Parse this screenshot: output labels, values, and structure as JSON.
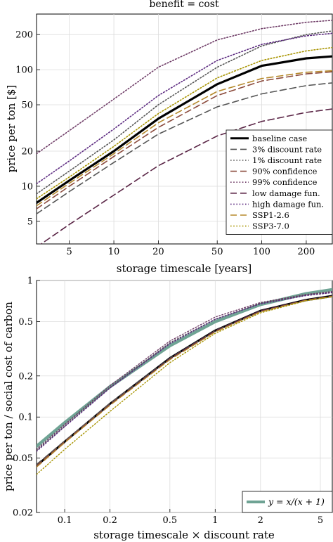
{
  "colors": {
    "black": "#000000",
    "grey": "#555555",
    "brown": "#8b4a3c",
    "plum": "#6e3b66",
    "darkplum": "#5a2546",
    "purple": "#5c2a80",
    "gold": "#b5882a",
    "olive": "#a89400",
    "teal": "#6fa394"
  },
  "chart_data": [
    {
      "type": "line",
      "title": "benefit = cost",
      "xlabel": "storage timescale [years]",
      "ylabel": "price per ton [$]",
      "xscale": "log",
      "yscale": "log",
      "xlim": [
        3,
        300
      ],
      "ylim": [
        3.2,
        300
      ],
      "xticks": [
        5,
        10,
        20,
        50,
        100,
        200
      ],
      "yticks": [
        5,
        10,
        20,
        50,
        100,
        200
      ],
      "grid": true,
      "legend_position": "lower-right",
      "x": [
        3,
        5,
        10,
        20,
        50,
        100,
        200,
        300
      ],
      "series": [
        {
          "name": "baseline case",
          "style": "solid",
          "color": "black",
          "width": 3.2,
          "values": [
            7.2,
            11.2,
            20,
            38,
            75,
            108,
            125,
            130
          ]
        },
        {
          "name": "3% discount rate",
          "style": "dashed",
          "color": "grey",
          "width": 1.6,
          "values": [
            5.8,
            9,
            16,
            28,
            48,
            62,
            73,
            77
          ]
        },
        {
          "name": "1% discount rate",
          "style": "dotted",
          "color": "grey",
          "width": 1.6,
          "values": [
            8.6,
            13.5,
            25,
            50,
            105,
            160,
            200,
            215
          ]
        },
        {
          "name": "90% confidence",
          "style": "dashed",
          "color": "brown",
          "width": 1.6,
          "values": [
            6.4,
            10,
            18,
            32,
            60,
            80,
            92,
            96
          ]
        },
        {
          "name": "99% confidence",
          "style": "dotted",
          "color": "plum",
          "width": 1.6,
          "values": [
            19,
            30,
            56,
            105,
            180,
            225,
            255,
            265
          ]
        },
        {
          "name": "low damage fun.",
          "style": "dashed",
          "color": "darkplum",
          "width": 1.6,
          "values": [
            3.0,
            4.7,
            8.4,
            15,
            27,
            36,
            43,
            46
          ]
        },
        {
          "name": "high damage fun.",
          "style": "dotted",
          "color": "purple",
          "width": 1.6,
          "values": [
            10.5,
            16.5,
            31,
            60,
            120,
            165,
            195,
            205
          ]
        },
        {
          "name": "SSP1-2.6",
          "style": "dashed",
          "color": "gold",
          "width": 1.6,
          "values": [
            6.8,
            10.6,
            19,
            35,
            65,
            84,
            95,
            98
          ]
        },
        {
          "name": "SSP3-7.0",
          "style": "dotted",
          "color": "olive",
          "width": 1.6,
          "values": [
            7.8,
            12,
            22,
            42,
            85,
            120,
            145,
            155
          ]
        }
      ]
    },
    {
      "type": "line",
      "title": "",
      "xlabel": "storage timescale × discount rate",
      "ylabel": "price per ton / social cost of carbon",
      "xscale": "log",
      "yscale": "log",
      "xlim": [
        0.065,
        6
      ],
      "ylim": [
        0.02,
        1
      ],
      "xticks": [
        0.1,
        0.2,
        0.5,
        1,
        2,
        5
      ],
      "xticklabels": [
        "0.1",
        "0.2",
        "0.5",
        "1",
        "2",
        "5"
      ],
      "yticks": [
        0.02,
        0.05,
        0.1,
        0.2,
        0.5,
        1
      ],
      "yticklabels": [
        "0.02",
        "0.05",
        "0.1",
        "0.2",
        "0.5",
        "1"
      ],
      "grid": true,
      "legend_position": "lower-right",
      "legend": "y = x/(x + 1)",
      "x": [
        0.065,
        0.1,
        0.2,
        0.5,
        1,
        2,
        4,
        6
      ],
      "series": [
        {
          "name": "y = x/(x + 1)",
          "style": "solid",
          "color": "teal",
          "width": 4.5,
          "values": [
            0.061,
            0.091,
            0.167,
            0.333,
            0.5,
            0.667,
            0.8,
            0.857
          ]
        },
        {
          "name": "baseline case",
          "style": "solid",
          "color": "black",
          "width": 3.0,
          "values": [
            0.044,
            0.066,
            0.125,
            0.27,
            0.43,
            0.6,
            0.72,
            0.77
          ]
        },
        {
          "name": "3% discount rate",
          "style": "dashed",
          "color": "grey",
          "width": 1.4,
          "values": [
            0.045,
            0.067,
            0.126,
            0.27,
            0.43,
            0.6,
            0.71,
            0.76
          ]
        },
        {
          "name": "90% confidence",
          "style": "dashed",
          "color": "brown",
          "width": 1.4,
          "values": [
            0.044,
            0.066,
            0.124,
            0.265,
            0.425,
            0.595,
            0.715,
            0.765
          ]
        },
        {
          "name": "low damage fun.",
          "style": "dashed",
          "color": "darkplum",
          "width": 1.4,
          "values": [
            0.043,
            0.065,
            0.123,
            0.268,
            0.428,
            0.6,
            0.72,
            0.77
          ]
        },
        {
          "name": "SSP1-2.6",
          "style": "dashed",
          "color": "gold",
          "width": 1.4,
          "values": [
            0.043,
            0.065,
            0.122,
            0.263,
            0.42,
            0.59,
            0.715,
            0.765
          ]
        },
        {
          "name": "99% confidence",
          "style": "dotted",
          "color": "plum",
          "width": 1.4,
          "values": [
            0.058,
            0.088,
            0.17,
            0.36,
            0.54,
            0.69,
            0.79,
            0.83
          ]
        },
        {
          "name": "1% discount rate",
          "style": "dotted",
          "color": "grey",
          "width": 1.4,
          "values": [
            0.057,
            0.086,
            0.165,
            0.35,
            0.52,
            0.68,
            0.78,
            0.82
          ]
        },
        {
          "name": "high damage fun.",
          "style": "dotted",
          "color": "purple",
          "width": 1.4,
          "values": [
            0.056,
            0.085,
            0.163,
            0.345,
            0.52,
            0.675,
            0.775,
            0.815
          ]
        },
        {
          "name": "SSP3-7.0",
          "style": "dotted",
          "color": "olive",
          "width": 1.4,
          "values": [
            0.038,
            0.058,
            0.11,
            0.25,
            0.41,
            0.58,
            0.71,
            0.76
          ]
        }
      ]
    }
  ]
}
